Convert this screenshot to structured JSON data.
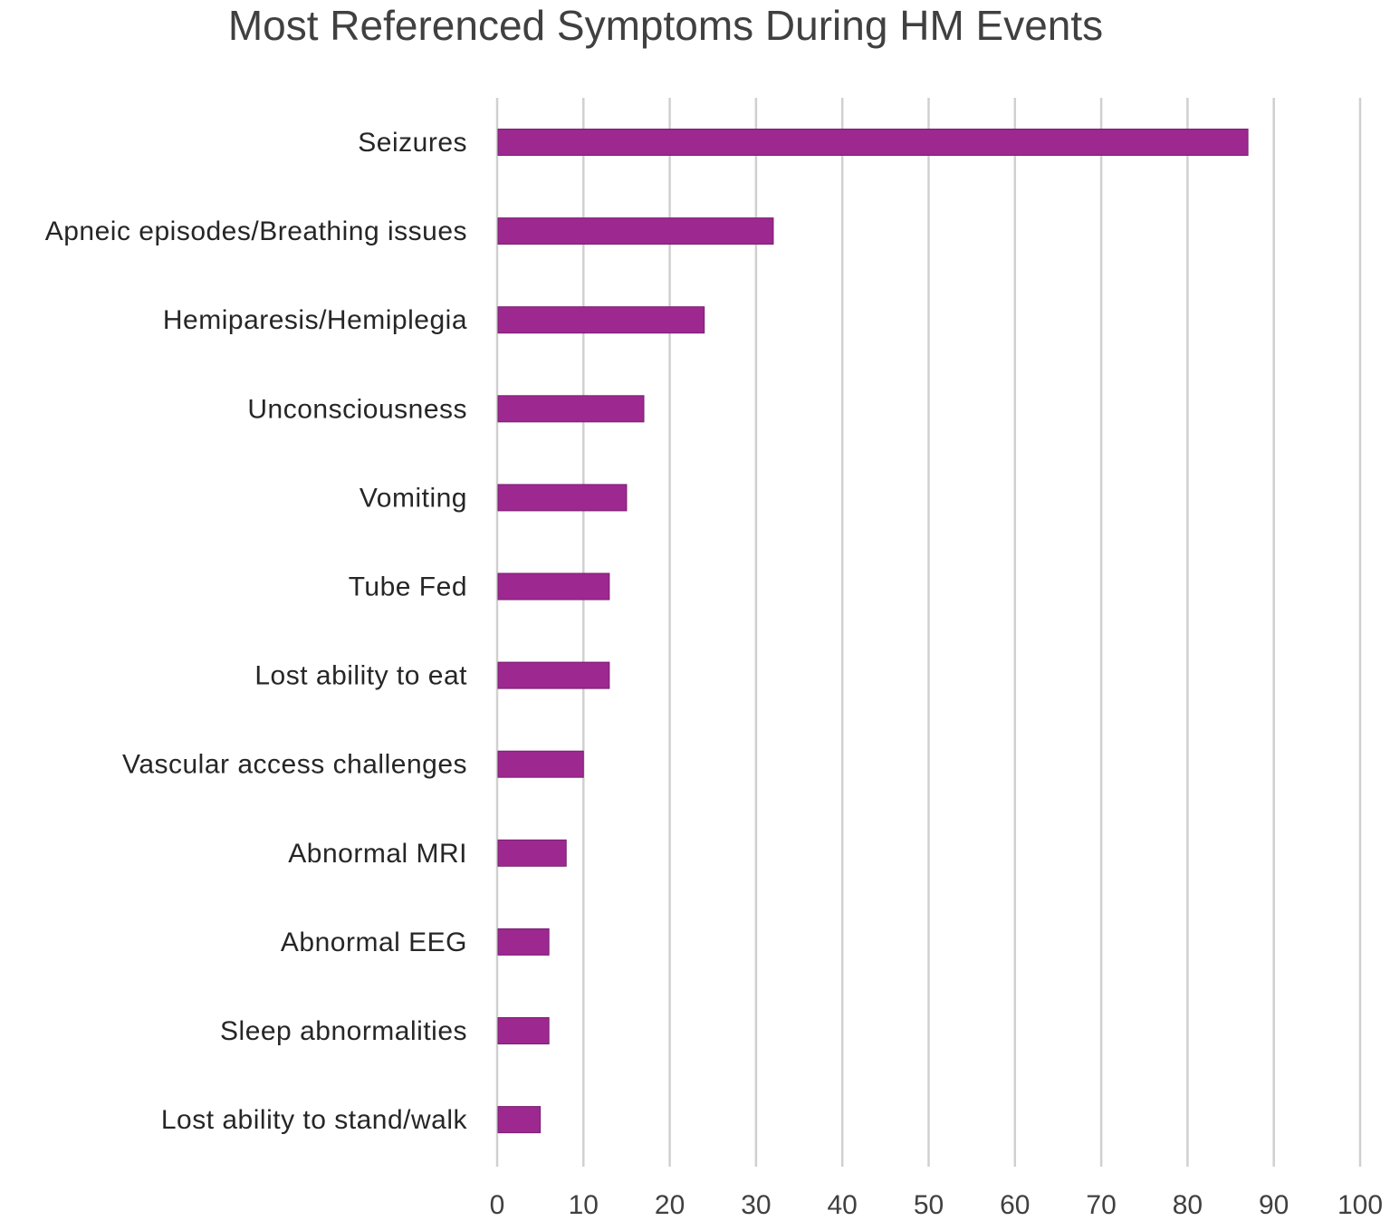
{
  "chart_data": {
    "type": "bar",
    "orientation": "horizontal",
    "title": "Most Referenced Symptoms During HM Events",
    "xlabel": "",
    "ylabel": "",
    "categories": [
      "Seizures",
      "Apneic episodes/Breathing issues",
      "Hemiparesis/Hemiplegia",
      "Unconsciousness",
      "Vomiting",
      "Tube Fed",
      "Lost ability to eat",
      "Vascular access challenges",
      "Abnormal MRI",
      "Abnormal EEG",
      "Sleep abnormalities",
      "Lost ability to stand/walk"
    ],
    "values": [
      87,
      32,
      24,
      17,
      15,
      13,
      13,
      10,
      8,
      6,
      6,
      5
    ],
    "xlim": [
      0,
      100
    ],
    "xticks": [
      "0",
      "10",
      "20",
      "30",
      "40",
      "50",
      "60",
      "70",
      "80",
      "90",
      "100"
    ],
    "grid": "vertical",
    "legend": "none",
    "bar_color": "#9C2890"
  }
}
